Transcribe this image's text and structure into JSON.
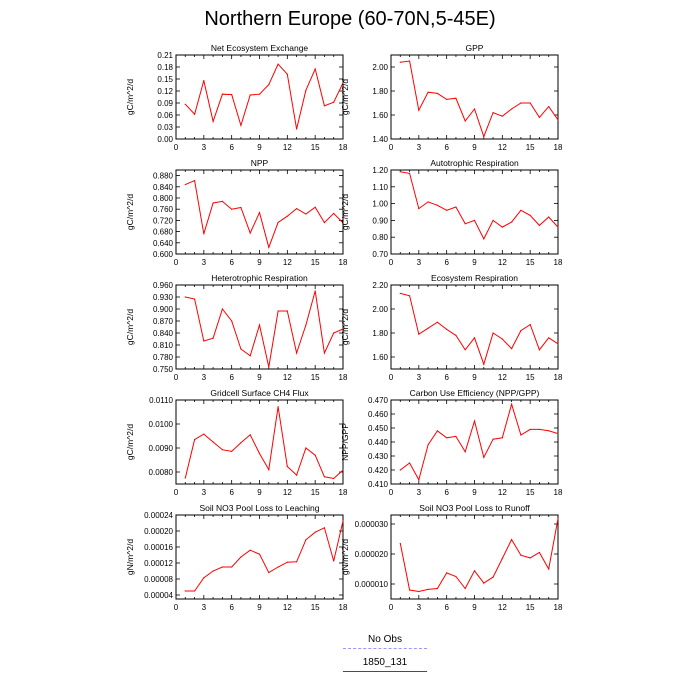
{
  "title": "Northern Europe (60-70N,5-45E)",
  "colors": {
    "series": "#ff0000",
    "obs": "#9999ff",
    "axis": "#000000"
  },
  "legend": {
    "entries": [
      {
        "label": "No Obs",
        "style": "dashed",
        "color": "#9999ff"
      },
      {
        "label": "1850_131",
        "style": "solid",
        "color": "#ff0000"
      }
    ]
  },
  "chart_data": [
    {
      "type": "line",
      "title": "Net Ecosystem Exchange",
      "ylabel": "gC/m^2/d",
      "xlim": [
        0,
        18
      ],
      "ylim": [
        0,
        0.21
      ],
      "xticks": [
        0,
        3,
        6,
        9,
        12,
        15,
        18
      ],
      "yticks": [
        0,
        0.03,
        0.06,
        0.09,
        0.12,
        0.15,
        0.18,
        0.21
      ],
      "ytick_labels": [
        "0.00",
        "0.03",
        "0.06",
        "0.09",
        "0.12",
        "0.15",
        "0.18",
        "0.21"
      ],
      "series": [
        {
          "name": "1850_131",
          "x": [
            1,
            2,
            3,
            4,
            5,
            6,
            7,
            8,
            9,
            10,
            11,
            12,
            13,
            14,
            15,
            16,
            17,
            18
          ],
          "values": [
            0.087,
            0.062,
            0.146,
            0.044,
            0.112,
            0.111,
            0.034,
            0.11,
            0.112,
            0.136,
            0.187,
            0.162,
            0.025,
            0.122,
            0.175,
            0.083,
            0.092,
            0.14
          ]
        }
      ]
    },
    {
      "type": "line",
      "title": "GPP",
      "ylabel": "gC/m^2/d",
      "xlim": [
        0,
        18
      ],
      "ylim": [
        1.4,
        2.1
      ],
      "xticks": [
        0,
        3,
        6,
        9,
        12,
        15,
        18
      ],
      "yticks": [
        1.4,
        1.6,
        1.8,
        2.0
      ],
      "ytick_labels": [
        "1.40",
        "1.60",
        "1.80",
        "2.00"
      ],
      "series": [
        {
          "name": "1850_131",
          "x": [
            1,
            2,
            3,
            4,
            5,
            6,
            7,
            8,
            9,
            10,
            11,
            12,
            13,
            14,
            15,
            16,
            17,
            18
          ],
          "values": [
            2.04,
            2.05,
            1.64,
            1.79,
            1.78,
            1.73,
            1.74,
            1.55,
            1.65,
            1.42,
            1.62,
            1.59,
            1.65,
            1.7,
            1.7,
            1.58,
            1.67,
            1.56
          ]
        }
      ]
    },
    {
      "type": "line",
      "title": "NPP",
      "ylabel": "gC/m^2/d",
      "xlim": [
        0,
        18
      ],
      "ylim": [
        0.6,
        0.9
      ],
      "xticks": [
        0,
        3,
        6,
        9,
        12,
        15,
        18
      ],
      "yticks": [
        0.6,
        0.64,
        0.68,
        0.72,
        0.76,
        0.8,
        0.84,
        0.88
      ],
      "ytick_labels": [
        "0.600",
        "0.640",
        "0.680",
        "0.720",
        "0.760",
        "0.800",
        "0.840",
        "0.880"
      ],
      "series": [
        {
          "name": "1850_131",
          "x": [
            1,
            2,
            3,
            4,
            5,
            6,
            7,
            8,
            9,
            10,
            11,
            12,
            13,
            14,
            15,
            16,
            17,
            18
          ],
          "values": [
            0.848,
            0.862,
            0.672,
            0.782,
            0.788,
            0.76,
            0.766,
            0.675,
            0.748,
            0.624,
            0.713,
            0.735,
            0.762,
            0.743,
            0.767,
            0.712,
            0.745,
            0.711
          ]
        }
      ]
    },
    {
      "type": "line",
      "title": "Autotrophic Respiration",
      "ylabel": "gC/m^2/d",
      "xlim": [
        0,
        18
      ],
      "ylim": [
        0.7,
        1.2
      ],
      "xticks": [
        0,
        3,
        6,
        9,
        12,
        15,
        18
      ],
      "yticks": [
        0.7,
        0.8,
        0.9,
        1.0,
        1.1,
        1.2
      ],
      "ytick_labels": [
        "0.70",
        "0.80",
        "0.90",
        "1.00",
        "1.10",
        "1.20"
      ],
      "series": [
        {
          "name": "1850_131",
          "x": [
            1,
            2,
            3,
            4,
            5,
            6,
            7,
            8,
            9,
            10,
            11,
            12,
            13,
            14,
            15,
            16,
            17,
            18
          ],
          "values": [
            1.19,
            1.18,
            0.97,
            1.01,
            0.99,
            0.96,
            0.98,
            0.88,
            0.9,
            0.79,
            0.9,
            0.86,
            0.89,
            0.96,
            0.93,
            0.87,
            0.92,
            0.86
          ]
        }
      ]
    },
    {
      "type": "line",
      "title": "Heterotrophic Respiration",
      "ylabel": "gC/m^2/d",
      "xlim": [
        0,
        18
      ],
      "ylim": [
        0.75,
        0.96
      ],
      "xticks": [
        0,
        3,
        6,
        9,
        12,
        15,
        18
      ],
      "yticks": [
        0.75,
        0.78,
        0.81,
        0.84,
        0.87,
        0.9,
        0.93,
        0.96
      ],
      "ytick_labels": [
        "0.750",
        "0.780",
        "0.810",
        "0.840",
        "0.870",
        "0.900",
        "0.930",
        "0.960"
      ],
      "series": [
        {
          "name": "1850_131",
          "x": [
            1,
            2,
            3,
            4,
            5,
            6,
            7,
            8,
            9,
            10,
            11,
            12,
            13,
            14,
            15,
            16,
            17,
            18
          ],
          "values": [
            0.93,
            0.925,
            0.82,
            0.827,
            0.9,
            0.87,
            0.8,
            0.783,
            0.86,
            0.755,
            0.895,
            0.895,
            0.79,
            0.86,
            0.945,
            0.79,
            0.84,
            0.85
          ]
        }
      ]
    },
    {
      "type": "line",
      "title": "Ecosystem Respiration",
      "ylabel": "gC/m^2/d",
      "xlim": [
        0,
        18
      ],
      "ylim": [
        1.5,
        2.2
      ],
      "xticks": [
        0,
        3,
        6,
        9,
        12,
        15,
        18
      ],
      "yticks": [
        1.6,
        1.8,
        2.0,
        2.2
      ],
      "ytick_labels": [
        "1.60",
        "1.80",
        "2.00",
        "2.20"
      ],
      "series": [
        {
          "name": "1850_131",
          "x": [
            1,
            2,
            3,
            4,
            5,
            6,
            7,
            8,
            9,
            10,
            11,
            12,
            13,
            14,
            15,
            16,
            17,
            18
          ],
          "values": [
            2.13,
            2.11,
            1.79,
            1.84,
            1.89,
            1.83,
            1.78,
            1.66,
            1.76,
            1.54,
            1.8,
            1.75,
            1.67,
            1.82,
            1.87,
            1.66,
            1.76,
            1.71
          ]
        }
      ]
    },
    {
      "type": "line",
      "title": "Gridcell Surface CH4 Flux",
      "ylabel": "gC/m^2/d",
      "xlim": [
        0,
        18
      ],
      "ylim": [
        0.0075,
        0.011
      ],
      "xticks": [
        0,
        3,
        6,
        9,
        12,
        15,
        18
      ],
      "yticks": [
        0.008,
        0.009,
        0.01,
        0.011
      ],
      "ytick_labels": [
        "0.0080",
        "0.0090",
        "0.0100",
        "0.0110"
      ],
      "series": [
        {
          "name": "1850_131",
          "x": [
            1,
            2,
            3,
            4,
            5,
            6,
            7,
            8,
            9,
            10,
            11,
            12,
            13,
            14,
            15,
            16,
            17,
            18
          ],
          "values": [
            0.00775,
            0.00935,
            0.00958,
            0.00925,
            0.00893,
            0.00886,
            0.00922,
            0.00955,
            0.00877,
            0.0081,
            0.01072,
            0.00823,
            0.00787,
            0.009,
            0.0087,
            0.0078,
            0.00773,
            0.00808
          ]
        }
      ]
    },
    {
      "type": "line",
      "title": "Carbon Use Efficiency (NPP/GPP)",
      "ylabel": "NPP/GPP",
      "xlim": [
        0,
        18
      ],
      "ylim": [
        0.41,
        0.47
      ],
      "xticks": [
        0,
        3,
        6,
        9,
        12,
        15,
        18
      ],
      "yticks": [
        0.41,
        0.42,
        0.43,
        0.44,
        0.45,
        0.46,
        0.47
      ],
      "ytick_labels": [
        "0.410",
        "0.420",
        "0.430",
        "0.440",
        "0.450",
        "0.460",
        "0.470"
      ],
      "series": [
        {
          "name": "1850_131",
          "x": [
            1,
            2,
            3,
            4,
            5,
            6,
            7,
            8,
            9,
            10,
            11,
            12,
            13,
            14,
            15,
            16,
            17,
            18
          ],
          "values": [
            0.42,
            0.425,
            0.413,
            0.438,
            0.448,
            0.443,
            0.444,
            0.433,
            0.455,
            0.429,
            0.442,
            0.443,
            0.467,
            0.445,
            0.449,
            0.449,
            0.448,
            0.446
          ]
        }
      ]
    },
    {
      "type": "line",
      "title": "Soil NO3 Pool Loss to Leaching",
      "ylabel": "gN/m^2/d",
      "xlim": [
        0,
        18
      ],
      "ylim": [
        3e-05,
        0.00024
      ],
      "xticks": [
        0,
        3,
        6,
        9,
        12,
        15,
        18
      ],
      "yticks": [
        4e-05,
        8e-05,
        0.00012,
        0.00016,
        0.0002,
        0.00024
      ],
      "ytick_labels": [
        "0.00004",
        "0.00008",
        "0.00012",
        "0.00016",
        "0.00020",
        "0.00024"
      ],
      "series": [
        {
          "name": "1850_131",
          "x": [
            1,
            2,
            3,
            4,
            5,
            6,
            7,
            8,
            9,
            10,
            11,
            12,
            13,
            14,
            15,
            16,
            17,
            18
          ],
          "values": [
            5e-05,
            5e-05,
            8.3e-05,
            0.0001,
            0.00011,
            0.00011,
            0.000135,
            0.000152,
            0.000142,
            9.6e-05,
            0.00011,
            0.000122,
            0.000123,
            0.000178,
            0.000197,
            0.000208,
            0.000125,
            0.000225
          ]
        }
      ]
    },
    {
      "type": "line",
      "title": "Soil NO3 Pool Loss to Runoff",
      "ylabel": "gN/m^2/d",
      "xlim": [
        0,
        18
      ],
      "ylim": [
        5e-06,
        3.3e-05
      ],
      "xticks": [
        0,
        3,
        6,
        9,
        12,
        15,
        18
      ],
      "yticks": [
        1e-05,
        2e-05,
        3e-05
      ],
      "ytick_labels": [
        "0.000010",
        "0.000020",
        "0.000030"
      ],
      "series": [
        {
          "name": "1850_131",
          "x": [
            1,
            2,
            3,
            4,
            5,
            6,
            7,
            8,
            9,
            10,
            11,
            12,
            13,
            14,
            15,
            16,
            17,
            18
          ],
          "values": [
            2.35e-05,
            8e-06,
            7.5e-06,
            8.2e-06,
            8.5e-06,
            1.37e-05,
            1.25e-05,
            8.5e-06,
            1.44e-05,
            1.03e-05,
            1.23e-05,
            1.85e-05,
            2.48e-05,
            1.96e-05,
            1.87e-05,
            2.05e-05,
            1.5e-05,
            3.18e-05
          ]
        }
      ]
    }
  ]
}
